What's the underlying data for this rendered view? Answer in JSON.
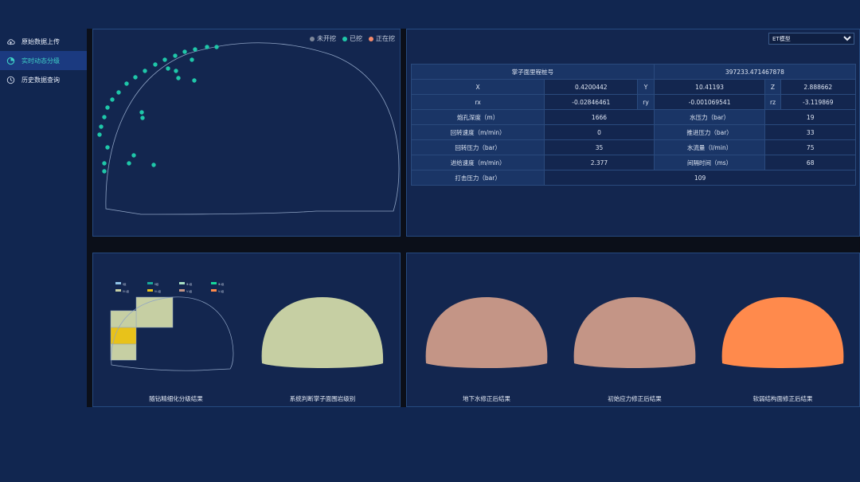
{
  "sidebar": {
    "items": [
      {
        "label": "原始数据上传",
        "icon": "cloud-upload-icon",
        "active": false
      },
      {
        "label": "实时动态分级",
        "icon": "pie-chart-icon",
        "active": true
      },
      {
        "label": "历史数据查询",
        "icon": "clock-icon",
        "active": false
      }
    ]
  },
  "scatter_panel": {
    "legend": [
      {
        "label": "未开挖",
        "color": "#7d8799"
      },
      {
        "label": "已挖",
        "color": "#1fc7a9"
      },
      {
        "label": "正在挖",
        "color": "#f58a6b"
      }
    ]
  },
  "model_select": {
    "value": "ET模型"
  },
  "params_table": {
    "mileage_label": "掌子面里程桩号",
    "mileage_value": "397233.471467878",
    "x_label": "X",
    "x_value": "0.4200442",
    "y_label": "Y",
    "y_value": "10.41193",
    "z_label": "Z",
    "z_value": "2.888662",
    "rx_label": "rx",
    "rx_value": "-0.02846461",
    "ry_label": "ry",
    "ry_value": "-0.001069541",
    "rz_label": "rz",
    "rz_value": "-3.119869",
    "rows": [
      {
        "l1": "炮孔深度（m）",
        "v1": "1666",
        "l2": "水压力（bar）",
        "v2": "19"
      },
      {
        "l1": "回转速度（m/min）",
        "v1": "0",
        "l2": "推进压力（bar）",
        "v2": "33"
      },
      {
        "l1": "回转压力（bar）",
        "v1": "35",
        "l2": "水流量（l/min）",
        "v2": "75"
      },
      {
        "l1": "进给速度（m/min）",
        "v1": "2.377",
        "l2": "间隔时间（ms）",
        "v2": "68"
      }
    ],
    "impact_label": "打击压力（bar）",
    "impact_value": "109"
  },
  "level_legend": [
    {
      "label": "Ⅰ级",
      "color": "#8fc3e8"
    },
    {
      "label": "Ⅱ级",
      "color": "#1aa89a"
    },
    {
      "label": "Ⅲ₁级",
      "color": "#a8e0c4"
    },
    {
      "label": "Ⅲ₂级",
      "color": "#17d69a"
    },
    {
      "label": "Ⅳ₁级",
      "color": "#c6cfa3"
    },
    {
      "label": "Ⅳ₂级",
      "color": "#e8c21a"
    },
    {
      "label": "Ⅴ₁级",
      "color": "#c49586"
    },
    {
      "label": "Ⅴ₂级",
      "color": "#ff8a4c"
    }
  ],
  "mini_legend": [
    "Ⅰ级",
    "Ⅱ级",
    "Ⅲ₁级",
    "Ⅲ₂级",
    "Ⅳ₁级",
    "Ⅳ₂级",
    "Ⅴ₁级",
    "Ⅴ₂级"
  ],
  "results": {
    "fine_caption": "随钻精细化分级结果",
    "system_caption": "系统判断掌子面围岩级别",
    "system_color": "#c6cfa3",
    "groundwater_caption": "地下水修正后结果",
    "groundwater_color": "#c49586",
    "stress_caption": "初始应力修正后结果",
    "stress_color": "#c49586",
    "structure_caption": "软弱结构面修正后结果",
    "structure_color": "#ff8a4c"
  }
}
